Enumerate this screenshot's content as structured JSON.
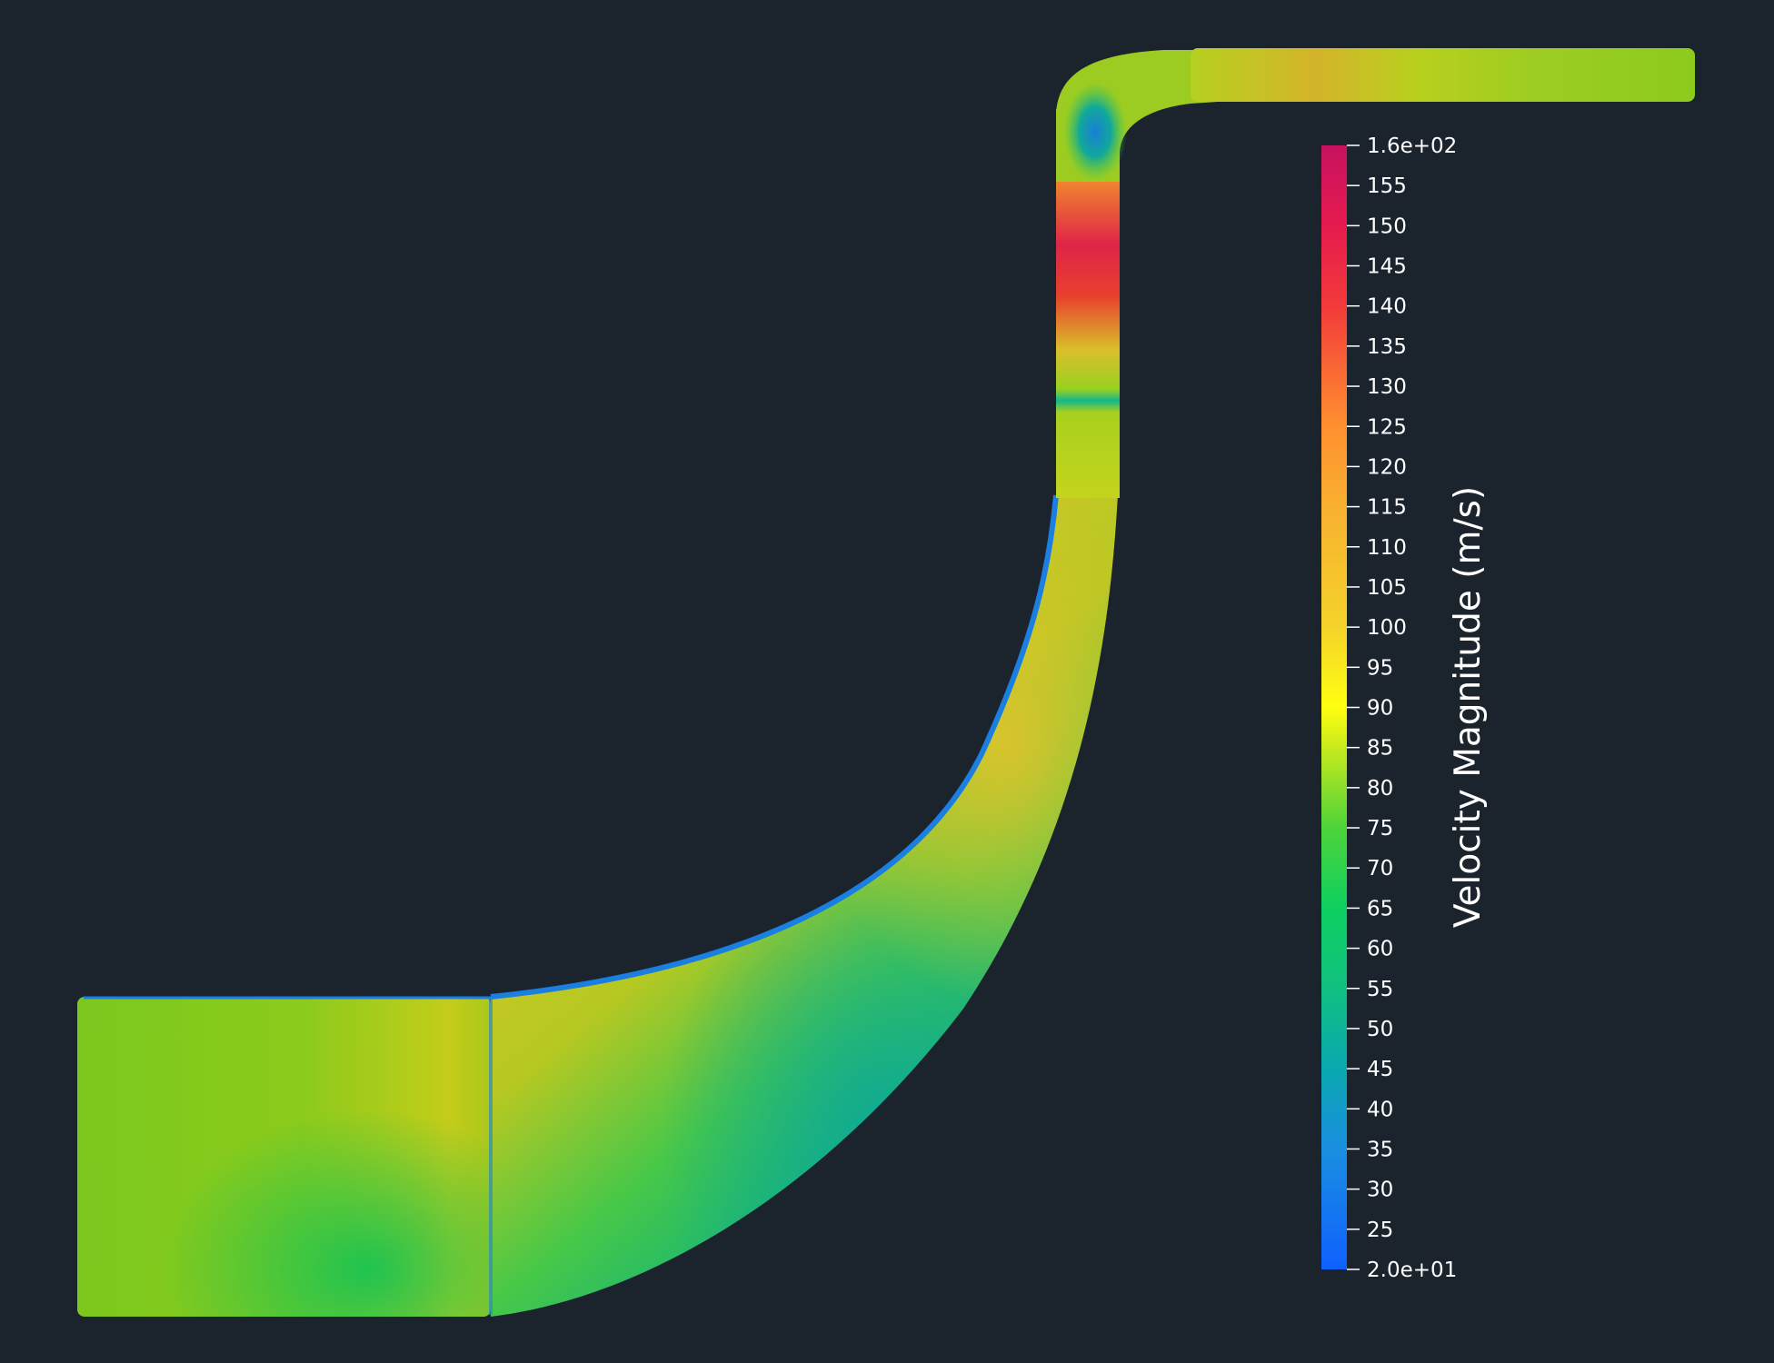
{
  "view": {
    "background": "#1b232d"
  },
  "legend": {
    "title": "Velocity Magnitude (m/s)",
    "range": [
      20,
      160
    ],
    "ticks": [
      {
        "value": 160,
        "label": "1.6e+02"
      },
      {
        "value": 155,
        "label": "155"
      },
      {
        "value": 150,
        "label": "150"
      },
      {
        "value": 145,
        "label": "145"
      },
      {
        "value": 140,
        "label": "140"
      },
      {
        "value": 135,
        "label": "135"
      },
      {
        "value": 130,
        "label": "130"
      },
      {
        "value": 125,
        "label": "125"
      },
      {
        "value": 120,
        "label": "120"
      },
      {
        "value": 115,
        "label": "115"
      },
      {
        "value": 110,
        "label": "110"
      },
      {
        "value": 105,
        "label": "105"
      },
      {
        "value": 100,
        "label": "100"
      },
      {
        "value": 95,
        "label": "95"
      },
      {
        "value": 90,
        "label": "90"
      },
      {
        "value": 85,
        "label": "85"
      },
      {
        "value": 80,
        "label": "80"
      },
      {
        "value": 75,
        "label": "75"
      },
      {
        "value": 70,
        "label": "70"
      },
      {
        "value": 65,
        "label": "65"
      },
      {
        "value": 60,
        "label": "60"
      },
      {
        "value": 55,
        "label": "55"
      },
      {
        "value": 50,
        "label": "50"
      },
      {
        "value": 45,
        "label": "45"
      },
      {
        "value": 40,
        "label": "40"
      },
      {
        "value": 35,
        "label": "35"
      },
      {
        "value": 30,
        "label": "30"
      },
      {
        "value": 25,
        "label": "25"
      },
      {
        "value": 20,
        "label": "2.0e+01"
      }
    ],
    "colormap": [
      {
        "value": 20,
        "color": "#1060ff"
      },
      {
        "value": 35,
        "color": "#1a8fe0"
      },
      {
        "value": 45,
        "color": "#0aa8b0"
      },
      {
        "value": 55,
        "color": "#10c080"
      },
      {
        "value": 65,
        "color": "#0ed060"
      },
      {
        "value": 75,
        "color": "#4ed43a"
      },
      {
        "value": 85,
        "color": "#c8ea1c"
      },
      {
        "value": 90,
        "color": "#ffff10"
      },
      {
        "value": 100,
        "color": "#f4d32a"
      },
      {
        "value": 115,
        "color": "#f8b030"
      },
      {
        "value": 125,
        "color": "#ff9030"
      },
      {
        "value": 140,
        "color": "#f23a3a"
      },
      {
        "value": 150,
        "color": "#e51b4e"
      },
      {
        "value": 160,
        "color": "#c81260"
      }
    ]
  }
}
